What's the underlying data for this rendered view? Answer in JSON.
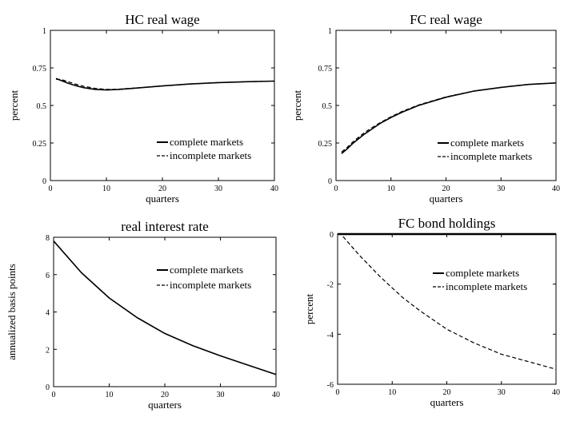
{
  "chart_data": [
    {
      "type": "line",
      "title": "HC real wage",
      "xlabel": "quarters",
      "ylabel": "percent",
      "xlim": [
        0,
        40
      ],
      "ylim": [
        0,
        1
      ],
      "xticks": [
        0,
        10,
        20,
        30,
        40
      ],
      "yticks": [
        0,
        0.25,
        0.5,
        0.75,
        1
      ],
      "ytick_labels": [
        "0",
        "0.25",
        "0.5",
        "0.75",
        "1"
      ],
      "legend_position": "lower-right",
      "series": [
        {
          "name": "complete markets",
          "style": "solid",
          "x": [
            1,
            2,
            3,
            4,
            5,
            6,
            8,
            10,
            12,
            15,
            20,
            25,
            30,
            35,
            40
          ],
          "y": [
            0.68,
            0.665,
            0.65,
            0.638,
            0.627,
            0.618,
            0.607,
            0.603,
            0.606,
            0.615,
            0.63,
            0.643,
            0.652,
            0.658,
            0.662
          ]
        },
        {
          "name": "incomplete markets",
          "style": "dashed",
          "x": [
            1,
            2,
            3,
            4,
            5,
            6,
            8,
            10,
            12,
            15,
            20,
            25,
            30,
            35,
            40
          ],
          "y": [
            0.675,
            0.672,
            0.66,
            0.648,
            0.636,
            0.627,
            0.614,
            0.607,
            0.608,
            0.616,
            0.63,
            0.643,
            0.652,
            0.658,
            0.662
          ]
        }
      ]
    },
    {
      "type": "line",
      "title": "FC real wage",
      "xlabel": "quarters",
      "ylabel": "percent",
      "xlim": [
        0,
        40
      ],
      "ylim": [
        0,
        1
      ],
      "xticks": [
        0,
        10,
        20,
        30,
        40
      ],
      "yticks": [
        0,
        0.25,
        0.5,
        0.75,
        1
      ],
      "ytick_labels": [
        "0",
        "0.25",
        "0.5",
        "0.75",
        "1"
      ],
      "legend_position": "lower-right",
      "series": [
        {
          "name": "complete markets",
          "style": "solid",
          "x": [
            1,
            2,
            3,
            4,
            5,
            6,
            8,
            10,
            12,
            15,
            20,
            25,
            30,
            35,
            40
          ],
          "y": [
            0.18,
            0.21,
            0.245,
            0.275,
            0.305,
            0.33,
            0.38,
            0.42,
            0.455,
            0.5,
            0.555,
            0.595,
            0.62,
            0.64,
            0.65
          ]
        },
        {
          "name": "incomplete markets",
          "style": "dashed",
          "x": [
            1,
            2,
            3,
            4,
            5,
            6,
            8,
            10,
            12,
            15,
            20,
            25,
            30,
            35,
            40
          ],
          "y": [
            0.19,
            0.22,
            0.255,
            0.285,
            0.315,
            0.34,
            0.385,
            0.425,
            0.46,
            0.503,
            0.557,
            0.596,
            0.621,
            0.64,
            0.65
          ]
        }
      ]
    },
    {
      "type": "line",
      "title": "real interest rate",
      "xlabel": "quarters",
      "ylabel": "annualized basis points",
      "xlim": [
        0,
        40
      ],
      "ylim": [
        0,
        8
      ],
      "xticks": [
        0,
        10,
        20,
        30,
        40
      ],
      "yticks": [
        0,
        2,
        4,
        6,
        8
      ],
      "ytick_labels": [
        "0",
        "2",
        "4",
        "6",
        "8"
      ],
      "legend_position": "right",
      "series": [
        {
          "name": "complete markets",
          "style": "solid",
          "x": [
            0,
            5,
            10,
            15,
            20,
            25,
            30,
            35,
            40
          ],
          "y": [
            7.8,
            6.1,
            4.75,
            3.7,
            2.85,
            2.2,
            1.65,
            1.15,
            0.65
          ]
        },
        {
          "name": "incomplete markets",
          "style": "dashed",
          "x": [
            0,
            5,
            10,
            15,
            20,
            25,
            30,
            35,
            40
          ],
          "y": [
            7.8,
            6.1,
            4.75,
            3.7,
            2.85,
            2.2,
            1.65,
            1.15,
            0.65
          ]
        }
      ]
    },
    {
      "type": "line",
      "title": "FC bond holdings",
      "xlabel": "quarters",
      "ylabel": "percent",
      "xlim": [
        0,
        40
      ],
      "ylim": [
        -6,
        0
      ],
      "xticks": [
        0,
        10,
        20,
        30,
        40
      ],
      "yticks": [
        0,
        -2,
        -4,
        -6
      ],
      "ytick_labels": [
        "0",
        "-2",
        "-4",
        "-6"
      ],
      "legend_position": "upper-right",
      "series": [
        {
          "name": "complete markets",
          "style": "solid",
          "x": [
            0,
            40
          ],
          "y": [
            0,
            0
          ]
        },
        {
          "name": "incomplete markets",
          "style": "dashed",
          "x": [
            1,
            2,
            4,
            6,
            8,
            10,
            12,
            15,
            20,
            25,
            30,
            35,
            40
          ],
          "y": [
            -0.1,
            -0.35,
            -0.85,
            -1.3,
            -1.75,
            -2.15,
            -2.55,
            -3.05,
            -3.8,
            -4.35,
            -4.8,
            -5.1,
            -5.4
          ]
        }
      ]
    }
  ]
}
